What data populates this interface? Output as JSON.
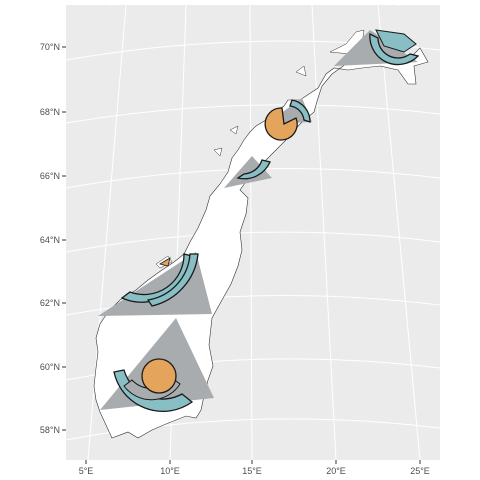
{
  "map": {
    "background_color": "#ebebeb",
    "grid_color": "#ffffff",
    "land_color": "#ffffff",
    "land_outline": "#333333",
    "y_axis_labels": [
      "70°N",
      "68°N",
      "66°N",
      "64°N",
      "62°N",
      "60°N",
      "58°N"
    ],
    "x_axis_labels": [
      "5°E",
      "10°E",
      "15°E",
      "20°E",
      "25°E"
    ],
    "overlay": {
      "triangle_color": "#a9acaf",
      "ring_color": "#88bfc4",
      "disc_color": "#e5a45c",
      "stroke_color": "#1a1a1a"
    }
  }
}
